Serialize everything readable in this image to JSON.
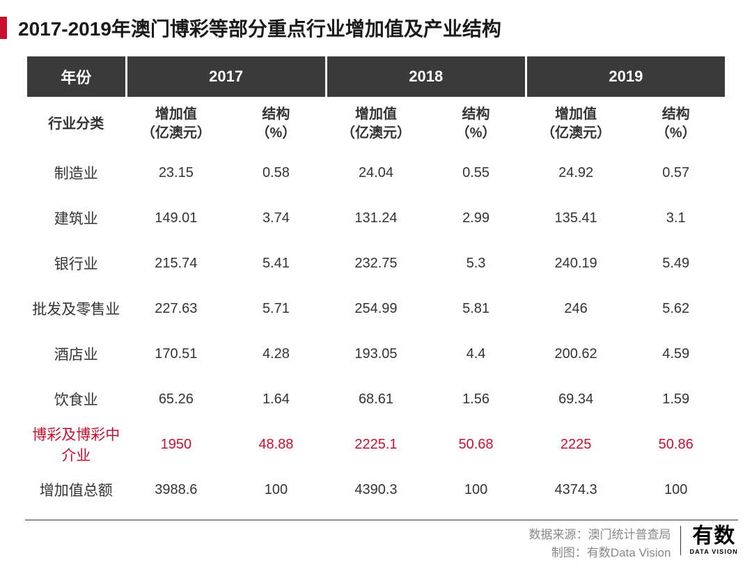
{
  "title": "2017-2019年澳门博彩等部分重点行业增加值及产业结构",
  "table": {
    "header_dark": [
      "年份",
      "2017",
      "2018",
      "2019"
    ],
    "header_light_first": "行业分类",
    "header_light_sub": [
      "增加值\n（亿澳元）",
      "结构\n（%）",
      "增加值\n（亿澳元）",
      "结构\n（%）",
      "增加值\n（亿澳元）",
      "结构\n（%）"
    ],
    "rows": [
      {
        "label": "制造业",
        "cells": [
          "23.15",
          "0.58",
          "24.04",
          "0.55",
          "24.92",
          "0.57"
        ],
        "highlight": false
      },
      {
        "label": "建筑业",
        "cells": [
          "149.01",
          "3.74",
          "131.24",
          "2.99",
          "135.41",
          "3.1"
        ],
        "highlight": false
      },
      {
        "label": "银行业",
        "cells": [
          "215.74",
          "5.41",
          "232.75",
          "5.3",
          "240.19",
          "5.49"
        ],
        "highlight": false
      },
      {
        "label": "批发及零售业",
        "cells": [
          "227.63",
          "5.71",
          "254.99",
          "5.81",
          "246",
          "5.62"
        ],
        "highlight": false
      },
      {
        "label": "酒店业",
        "cells": [
          "170.51",
          "4.28",
          "193.05",
          "4.4",
          "200.62",
          "4.59"
        ],
        "highlight": false
      },
      {
        "label": "饮食业",
        "cells": [
          "65.26",
          "1.64",
          "68.61",
          "1.56",
          "69.34",
          "1.59"
        ],
        "highlight": false
      },
      {
        "label": "博彩及博彩中介业",
        "cells": [
          "1950",
          "48.88",
          "2225.1",
          "50.68",
          "2225",
          "50.86"
        ],
        "highlight": true
      },
      {
        "label": "增加值总额",
        "cells": [
          "3988.6",
          "100",
          "4390.3",
          "100",
          "4374.3",
          "100"
        ],
        "highlight": false
      }
    ]
  },
  "footer": {
    "source_label": "数据来源：",
    "source_value": "澳门统计普查局",
    "maker_label": "制图：",
    "maker_value": "有数Data Vision"
  },
  "logo": {
    "main": "有数",
    "sub": "DATA VISION"
  },
  "colors": {
    "accent": "#c8102e",
    "header_dark_bg": "#3a3a3a",
    "header_dark_fg": "#ffffff",
    "text": "#333333",
    "footer_text": "#888888"
  }
}
